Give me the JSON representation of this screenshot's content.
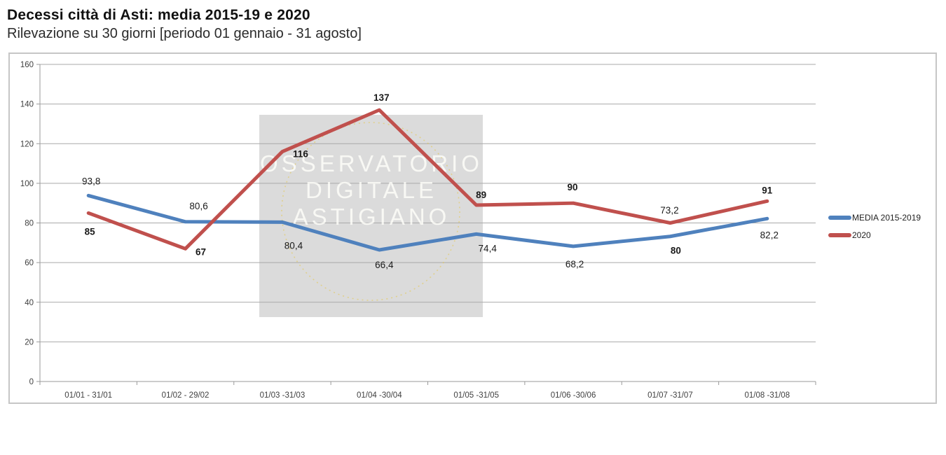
{
  "header": {
    "title": "Decessi città di Asti: media 2015-19 e 2020",
    "subtitle": "Rilevazione su 30 giorni [periodo 01 gennaio - 31 agosto]"
  },
  "chart_data": {
    "type": "line",
    "title": "Decessi città di Asti: media 2015-19 e 2020",
    "subtitle": "Rilevazione su 30 giorni [periodo 01 gennaio - 31 agosto]",
    "categories": [
      "01/01 - 31/01",
      "01/02 - 29/02",
      "01/03 -31/03",
      "01/04 -30/04",
      "01/05 -31/05",
      "01/06 -30/06",
      "01/07 -31/07",
      "01/08 -31/08"
    ],
    "series": [
      {
        "name": "MEDIA 2015-2019",
        "color": "#4F81BD",
        "values": [
          93.8,
          80.6,
          80.4,
          66.4,
          74.4,
          68.2,
          73.2,
          82.2
        ],
        "point_labels": [
          "93,8",
          "80,6",
          "80,4",
          "66,4",
          "74,4",
          "68,2",
          "73,2",
          "82,2"
        ],
        "label_bold": false,
        "label_offsets": [
          [
            4,
            -16
          ],
          [
            19,
            -18
          ],
          [
            16,
            38
          ],
          [
            7,
            26
          ],
          [
            16,
            25
          ],
          [
            2,
            30
          ],
          [
            -1,
            -33
          ],
          [
            3,
            28
          ]
        ]
      },
      {
        "name": "2020",
        "color": "#C0504D",
        "values": [
          85,
          67,
          116,
          137,
          89,
          90,
          80,
          91
        ],
        "point_labels": [
          "85",
          "67",
          "116",
          "137",
          "89",
          "90",
          "80",
          "91"
        ],
        "label_bold": true,
        "label_offsets": [
          [
            2,
            31
          ],
          [
            22,
            9
          ],
          [
            26,
            8
          ],
          [
            3,
            -13
          ],
          [
            7,
            -10
          ],
          [
            -1,
            -18
          ],
          [
            8,
            44
          ],
          [
            0,
            -11
          ]
        ]
      }
    ],
    "ylim": [
      0,
      160
    ],
    "ytick_step": 20,
    "grid": true,
    "legend_position": "right",
    "grid_color": "#a9a9a9",
    "axis_color": "#9a9a9a",
    "watermark": {
      "lines": [
        "OSSERVATORIO",
        "DIGITALE",
        "ASTIGIANO"
      ],
      "box_color": "#dbdbdb",
      "circle_color": "rgba(228,198,75,0.55)"
    }
  }
}
